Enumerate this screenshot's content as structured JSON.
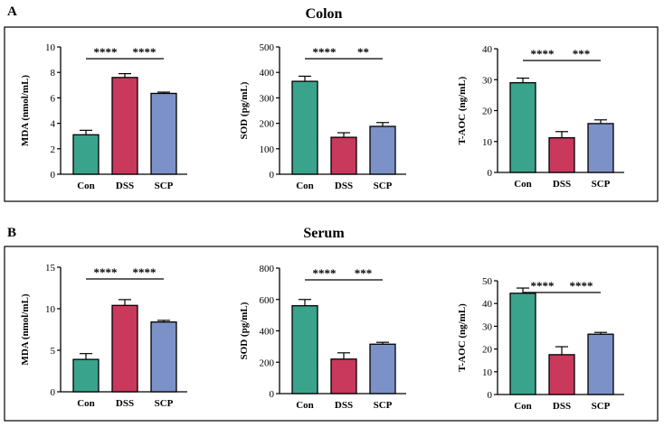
{
  "figure": {
    "panels": [
      {
        "letter": "A",
        "title": "Colon"
      },
      {
        "letter": "B",
        "title": "Serum"
      }
    ]
  },
  "colors": {
    "Con": "#3aa38b",
    "DSS": "#c8395b",
    "SCP": "#7b91c8"
  },
  "chart_data": [
    {
      "type": "bar",
      "panel": "A",
      "group": "Colon",
      "categories": [
        "Con",
        "DSS",
        "SCP"
      ],
      "values": [
        3.1,
        7.6,
        6.35
      ],
      "errors": [
        0.35,
        0.3,
        0.1
      ],
      "ylabel": "MDA (nmol/mL)",
      "ylim": [
        0,
        10
      ],
      "yticks": [
        0,
        2,
        4,
        6,
        8,
        10
      ],
      "significance": [
        {
          "from": 0,
          "to": 1,
          "label": "****"
        },
        {
          "from": 1,
          "to": 2,
          "label": "****"
        }
      ]
    },
    {
      "type": "bar",
      "panel": "A",
      "group": "Colon",
      "categories": [
        "Con",
        "DSS",
        "SCP"
      ],
      "values": [
        365,
        145,
        188
      ],
      "errors": [
        20,
        18,
        15
      ],
      "ylabel": "SOD (pg/mL)",
      "ylim": [
        0,
        500
      ],
      "yticks": [
        0,
        100,
        200,
        300,
        400,
        500
      ],
      "significance": [
        {
          "from": 0,
          "to": 1,
          "label": "****"
        },
        {
          "from": 1,
          "to": 2,
          "label": "**"
        }
      ]
    },
    {
      "type": "bar",
      "panel": "A",
      "group": "Colon",
      "categories": [
        "Con",
        "DSS",
        "SCP"
      ],
      "values": [
        29,
        11.2,
        15.8
      ],
      "errors": [
        1.5,
        2.0,
        1.2
      ],
      "ylabel": "T-AOC (ng/mL)",
      "ylim": [
        0,
        40
      ],
      "yticks": [
        0,
        10,
        20,
        30,
        40
      ],
      "significance": [
        {
          "from": 0,
          "to": 1,
          "label": "****"
        },
        {
          "from": 1,
          "to": 2,
          "label": "***"
        }
      ]
    },
    {
      "type": "bar",
      "panel": "B",
      "group": "Serum",
      "categories": [
        "Con",
        "DSS",
        "SCP"
      ],
      "values": [
        3.9,
        10.4,
        8.4
      ],
      "errors": [
        0.7,
        0.7,
        0.2
      ],
      "ylabel": "MDA (nmol/mL)",
      "ylim": [
        0,
        15
      ],
      "yticks": [
        0,
        5,
        10,
        15
      ],
      "significance": [
        {
          "from": 0,
          "to": 1,
          "label": "****"
        },
        {
          "from": 1,
          "to": 2,
          "label": "****"
        }
      ]
    },
    {
      "type": "bar",
      "panel": "B",
      "group": "Serum",
      "categories": [
        "Con",
        "DSS",
        "SCP"
      ],
      "values": [
        560,
        220,
        315
      ],
      "errors": [
        40,
        40,
        12
      ],
      "ylabel": "SOD (pg/mL)",
      "ylim": [
        0,
        800
      ],
      "yticks": [
        0,
        200,
        400,
        600,
        800
      ],
      "significance": [
        {
          "from": 0,
          "to": 1,
          "label": "****"
        },
        {
          "from": 1,
          "to": 2,
          "label": "***"
        }
      ]
    },
    {
      "type": "bar",
      "panel": "B",
      "group": "Serum",
      "categories": [
        "Con",
        "DSS",
        "SCP"
      ],
      "values": [
        44.5,
        17.5,
        26.5
      ],
      "errors": [
        2.3,
        3.5,
        0.8
      ],
      "ylabel": "T-AOC (ng/mL)",
      "ylim": [
        0,
        50
      ],
      "yticks": [
        0,
        10,
        20,
        30,
        40,
        50
      ],
      "significance": [
        {
          "from": 0,
          "to": 1,
          "label": "****"
        },
        {
          "from": 1,
          "to": 2,
          "label": "****"
        }
      ]
    }
  ]
}
